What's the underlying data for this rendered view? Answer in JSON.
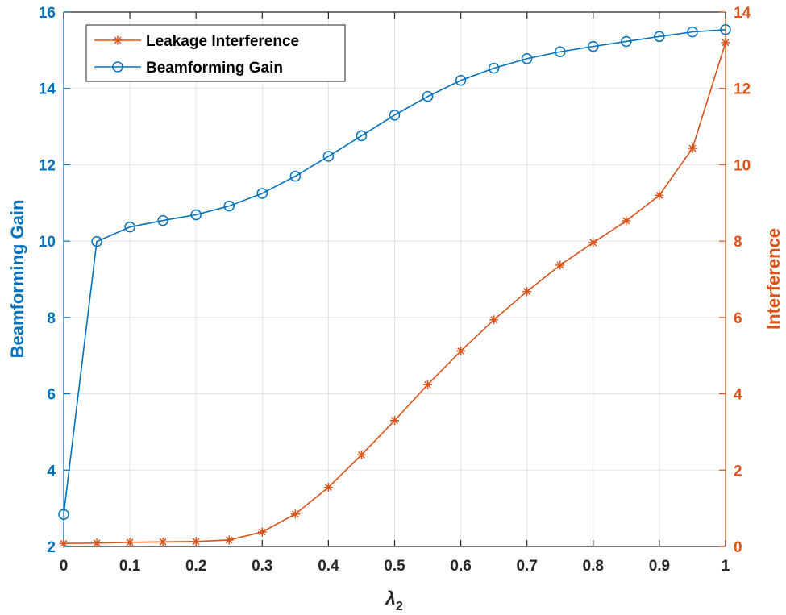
{
  "chart_data": {
    "type": "line",
    "x": [
      0,
      0.05,
      0.1,
      0.15,
      0.2,
      0.25,
      0.3,
      0.35,
      0.4,
      0.45,
      0.5,
      0.55,
      0.6,
      0.65,
      0.7,
      0.75,
      0.8,
      0.85,
      0.9,
      0.95,
      1
    ],
    "xlabel": "λ",
    "xlabel_subscript": "2",
    "xlim": [
      0,
      1
    ],
    "xticks": [
      "0",
      "0.1",
      "0.2",
      "0.3",
      "0.4",
      "0.5",
      "0.6",
      "0.7",
      "0.8",
      "0.9",
      "1"
    ],
    "grid": true,
    "legend_position": "top-left",
    "left_axis": {
      "label": "Beamforming Gain",
      "ylim": [
        2,
        16
      ],
      "ticks": [
        "2",
        "4",
        "6",
        "8",
        "10",
        "12",
        "14",
        "16"
      ],
      "color": "#0072BD"
    },
    "right_axis": {
      "label": "Interference",
      "ylim": [
        0,
        14
      ],
      "ticks": [
        "0",
        "2",
        "4",
        "6",
        "8",
        "10",
        "12",
        "14"
      ],
      "color": "#D95319"
    },
    "series": [
      {
        "name": "Leakage Interference",
        "axis": "right",
        "marker": "asterisk",
        "color": "#D95319",
        "values": [
          0.08,
          0.09,
          0.11,
          0.12,
          0.13,
          0.17,
          0.38,
          0.85,
          1.55,
          2.4,
          3.3,
          4.24,
          5.12,
          5.94,
          6.68,
          7.37,
          7.96,
          8.53,
          9.2,
          10.43,
          13.2
        ]
      },
      {
        "name": "Beamforming Gain",
        "axis": "left",
        "marker": "circle",
        "color": "#0072BD",
        "values": [
          2.84,
          9.99,
          10.37,
          10.54,
          10.69,
          10.92,
          11.25,
          11.7,
          12.22,
          12.76,
          13.3,
          13.79,
          14.21,
          14.53,
          14.78,
          14.96,
          15.1,
          15.23,
          15.36,
          15.48,
          15.54
        ]
      }
    ]
  }
}
